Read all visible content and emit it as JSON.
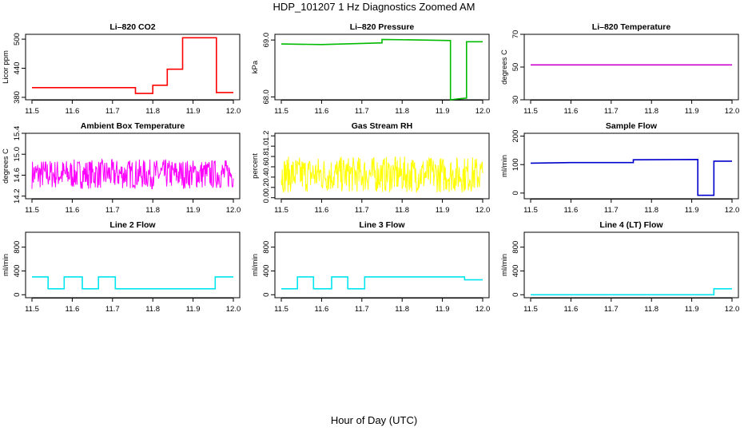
{
  "figure": {
    "title": "HDP_101207  1 Hz Diagnostics Zoomed AM",
    "xlabel": "Hour of Day (UTC)"
  },
  "chart_data": [
    {
      "type": "line",
      "title": "Li–820 CO2",
      "xlabel": "",
      "ylabel": "Licor ppm",
      "xlim": [
        11.5,
        12.0
      ],
      "ylim": [
        375,
        510
      ],
      "xticks": [
        "11.5",
        "11.6",
        "11.7",
        "11.8",
        "11.9",
        "12.0"
      ],
      "yticks": [
        "380",
        "440",
        "500"
      ],
      "color": "#ff0000",
      "noise": 0,
      "series": [
        {
          "x": [
            11.5,
            11.757,
            11.757,
            11.8,
            11.8,
            11.836,
            11.836,
            11.874,
            11.874,
            11.958,
            11.958,
            12.0
          ],
          "y": [
            400,
            400,
            388,
            388,
            405,
            405,
            438,
            438,
            503,
            503,
            390,
            390
          ]
        }
      ]
    },
    {
      "type": "line",
      "title": "Li–820 Pressure",
      "xlabel": "",
      "ylabel": "kPa",
      "xlim": [
        11.5,
        12.0
      ],
      "ylim": [
        67.95,
        69.1
      ],
      "xticks": [
        "11.5",
        "11.6",
        "11.7",
        "11.8",
        "11.9",
        "12.0"
      ],
      "yticks": [
        "68.0",
        "69.0"
      ],
      "color": "#00bb00",
      "noise": 0,
      "series": [
        {
          "x": [
            11.5,
            11.6,
            11.7,
            11.75,
            11.75,
            11.84,
            11.92,
            11.92,
            11.945,
            11.96,
            11.96,
            11.98,
            12.0
          ],
          "y": [
            68.93,
            68.92,
            68.94,
            68.95,
            69.01,
            69.0,
            68.99,
            67.95,
            67.97,
            67.98,
            68.97,
            68.97,
            68.97
          ]
        }
      ]
    },
    {
      "type": "line",
      "title": "Li–820 Temperature",
      "xlabel": "",
      "ylabel": "degrees C",
      "xlim": [
        11.5,
        12.0
      ],
      "ylim": [
        30,
        70
      ],
      "xticks": [
        "11.5",
        "11.6",
        "11.7",
        "11.8",
        "11.9",
        "12.0"
      ],
      "yticks": [
        "30",
        "50",
        "70"
      ],
      "color": "#cc00cc",
      "noise": 0,
      "series": [
        {
          "x": [
            11.5,
            12.0
          ],
          "y": [
            51.3,
            51.3
          ]
        }
      ]
    },
    {
      "type": "line",
      "title": "Ambient Box Temperature",
      "xlabel": "",
      "ylabel": "degrees C",
      "xlim": [
        11.5,
        12.0
      ],
      "ylim": [
        14.15,
        15.4
      ],
      "xticks": [
        "11.5",
        "11.6",
        "11.7",
        "11.8",
        "11.9",
        "12.0"
      ],
      "yticks": [
        "14.2",
        "14.6",
        "15.0",
        "15.4"
      ],
      "color": "#ff00ff",
      "noise": 0.45,
      "series": [
        {
          "x": [
            11.5,
            12.0
          ],
          "y": [
            14.62,
            14.62
          ]
        }
      ]
    },
    {
      "type": "line",
      "title": "Gas Stream RH",
      "xlabel": "",
      "ylabel": "percent",
      "xlim": [
        11.5,
        12.0
      ],
      "ylim": [
        -0.02,
        1.25
      ],
      "xticks": [
        "11.5",
        "11.6",
        "11.7",
        "11.8",
        "11.9",
        "12.0"
      ],
      "yticks": [
        "0.0",
        "0.2",
        "0.4",
        "0.6",
        "0.8",
        "1.0",
        "1.2"
      ],
      "color": "#ffff00",
      "noise": 0.55,
      "series": [
        {
          "x": [
            11.5,
            12.0
          ],
          "y": [
            0.45,
            0.45
          ]
        }
      ]
    },
    {
      "type": "line",
      "title": "Sample Flow",
      "xlabel": "",
      "ylabel": "ml/min",
      "xlim": [
        11.5,
        12.0
      ],
      "ylim": [
        -20,
        210
      ],
      "xticks": [
        "11.5",
        "11.6",
        "11.7",
        "11.8",
        "11.9",
        "12.0"
      ],
      "yticks": [
        "0",
        "100",
        "200"
      ],
      "color": "#0000cc",
      "noise": 0,
      "series": [
        {
          "x": [
            11.5,
            11.6,
            11.7,
            11.755,
            11.755,
            11.915,
            11.915,
            11.955,
            11.955,
            12.0
          ],
          "y": [
            105,
            107,
            107,
            107,
            117,
            118,
            -8,
            -8,
            112,
            112
          ]
        }
      ]
    },
    {
      "type": "line",
      "title": "Line 2 Flow",
      "xlabel": "",
      "ylabel": "ml/min",
      "xlim": [
        11.5,
        12.0
      ],
      "ylim": [
        -50,
        1050
      ],
      "xticks": [
        "11.5",
        "11.6",
        "11.7",
        "11.8",
        "11.9",
        "12.0"
      ],
      "yticks": [
        "0",
        "400",
        "800"
      ],
      "color": "#00e5ee",
      "noise": 0,
      "series": [
        {
          "x": [
            11.5,
            11.54,
            11.54,
            11.58,
            11.58,
            11.625,
            11.625,
            11.665,
            11.665,
            11.707,
            11.707,
            11.955,
            11.955,
            12.0
          ],
          "y": [
            300,
            300,
            100,
            100,
            300,
            300,
            100,
            100,
            300,
            300,
            100,
            100,
            300,
            300
          ]
        }
      ]
    },
    {
      "type": "line",
      "title": "Line 3 Flow",
      "xlabel": "",
      "ylabel": "ml/min",
      "xlim": [
        11.5,
        12.0
      ],
      "ylim": [
        -50,
        1050
      ],
      "xticks": [
        "11.5",
        "11.6",
        "11.7",
        "11.8",
        "11.9",
        "12.0"
      ],
      "yticks": [
        "0",
        "400",
        "800"
      ],
      "color": "#00e5ee",
      "noise": 0,
      "series": [
        {
          "x": [
            11.5,
            11.54,
            11.54,
            11.58,
            11.58,
            11.625,
            11.625,
            11.665,
            11.665,
            11.707,
            11.707,
            11.955,
            11.955,
            12.0
          ],
          "y": [
            100,
            100,
            300,
            300,
            100,
            100,
            300,
            300,
            100,
            100,
            300,
            300,
            250,
            250
          ]
        }
      ]
    },
    {
      "type": "line",
      "title": "Line 4 (LT) Flow",
      "xlabel": "",
      "ylabel": "ml/min",
      "xlim": [
        11.5,
        12.0
      ],
      "ylim": [
        -50,
        1050
      ],
      "xticks": [
        "11.5",
        "11.6",
        "11.7",
        "11.8",
        "11.9",
        "12.0"
      ],
      "yticks": [
        "0",
        "400",
        "800"
      ],
      "color": "#00e5ee",
      "noise": 0,
      "series": [
        {
          "x": [
            11.5,
            11.955,
            11.955,
            12.0
          ],
          "y": [
            0,
            0,
            100,
            100
          ]
        }
      ]
    }
  ]
}
